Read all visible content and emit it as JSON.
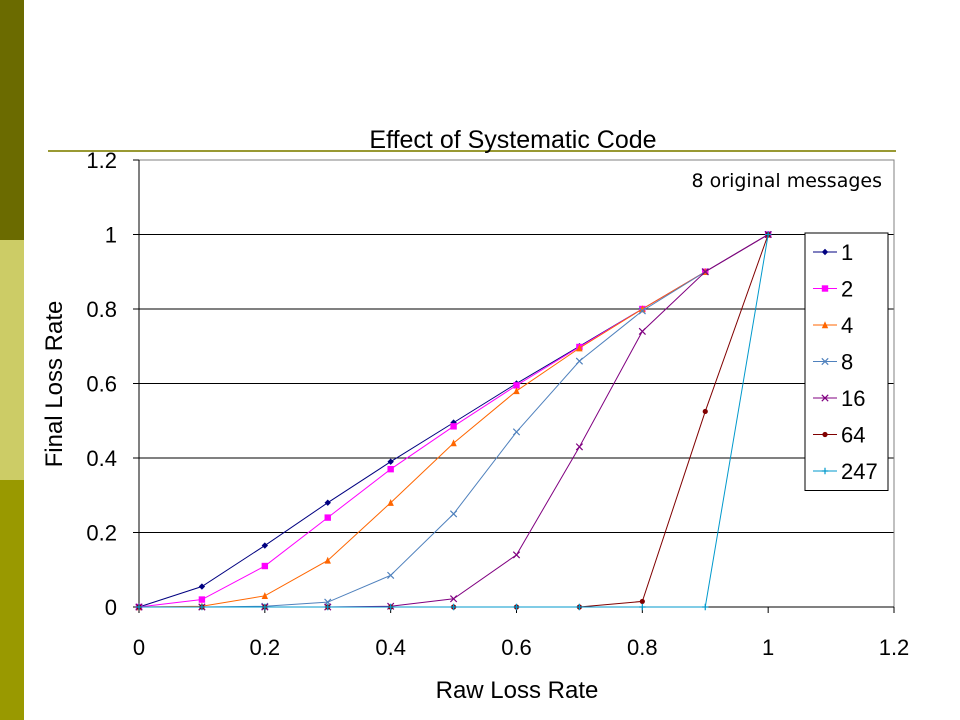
{
  "slide": {
    "side_colors": [
      "#6b6b00",
      "#cccc66",
      "#999900"
    ],
    "rule_color": "#999933"
  },
  "chart_data": {
    "type": "line",
    "title": "Effect of Systematic Code",
    "xlabel": "Raw Loss Rate",
    "ylabel": "Final Loss Rate",
    "annotation": "8 original messages",
    "xlim": [
      0,
      1.2
    ],
    "ylim": [
      0,
      1.2
    ],
    "x_ticks": [
      "0",
      "0.2",
      "0.4",
      "0.6",
      "0.8",
      "1",
      "1.2"
    ],
    "y_ticks": [
      "0",
      "0.2",
      "0.4",
      "0.6",
      "0.8",
      "1",
      "1.2"
    ],
    "grid": "horizontal",
    "legend_position": "right",
    "x": [
      0,
      0.1,
      0.2,
      0.3,
      0.4,
      0.5,
      0.6,
      0.7,
      0.8,
      0.9,
      1.0
    ],
    "series": [
      {
        "name": "1",
        "color": "#000080",
        "marker": "diamond",
        "values": [
          0,
          0.055,
          0.165,
          0.28,
          0.39,
          0.495,
          0.6,
          0.7,
          0.8,
          0.9,
          1.0
        ]
      },
      {
        "name": "2",
        "color": "#ff00ff",
        "marker": "square",
        "values": [
          0,
          0.02,
          0.11,
          0.24,
          0.37,
          0.485,
          0.595,
          0.698,
          0.8,
          0.9,
          1.0
        ]
      },
      {
        "name": "4",
        "color": "#ff6600",
        "marker": "triangle",
        "values": [
          0,
          0.002,
          0.03,
          0.125,
          0.28,
          0.44,
          0.58,
          0.695,
          0.8,
          0.9,
          1.0
        ]
      },
      {
        "name": "8",
        "color": "#4f81bd",
        "marker": "x",
        "values": [
          0,
          0,
          0.002,
          0.013,
          0.085,
          0.25,
          0.47,
          0.66,
          0.795,
          0.9,
          1.0
        ]
      },
      {
        "name": "16",
        "color": "#800080",
        "marker": "x",
        "values": [
          0,
          0,
          0,
          0,
          0.002,
          0.022,
          0.14,
          0.43,
          0.74,
          0.9,
          1.0
        ]
      },
      {
        "name": "64",
        "color": "#800000",
        "marker": "circle",
        "values": [
          0,
          0,
          0,
          0,
          0,
          0,
          0,
          0,
          0.015,
          0.525,
          1.0
        ]
      },
      {
        "name": "247",
        "color": "#0099cc",
        "marker": "plus",
        "values": [
          0,
          0,
          0,
          0,
          0,
          0,
          0,
          0,
          0,
          0,
          1.0
        ]
      }
    ]
  }
}
